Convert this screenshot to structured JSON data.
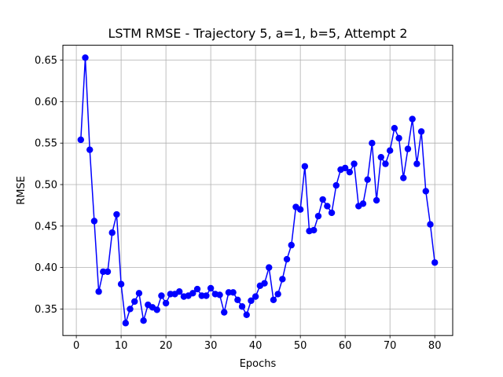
{
  "chart_data": {
    "type": "line",
    "title": "LSTM RMSE - Trajectory 5, a=1, b=5, Attempt 2",
    "xlabel": "Epochs",
    "ylabel": "RMSE",
    "xlim": [
      -3,
      84
    ],
    "ylim": [
      0.318,
      0.668
    ],
    "xticks": [
      0,
      10,
      20,
      30,
      40,
      50,
      60,
      70,
      80
    ],
    "yticks": [
      0.35,
      0.4,
      0.45,
      0.5,
      0.55,
      0.6,
      0.65
    ],
    "ytick_labels": [
      "0.35",
      "0.40",
      "0.45",
      "0.50",
      "0.55",
      "0.60",
      "0.65"
    ],
    "grid": true,
    "series": [
      {
        "color": "#0000ff",
        "marker": "circle",
        "x": [
          1,
          2,
          3,
          4,
          5,
          6,
          7,
          8,
          9,
          10,
          11,
          12,
          13,
          14,
          15,
          16,
          17,
          18,
          19,
          20,
          21,
          22,
          23,
          24,
          25,
          26,
          27,
          28,
          29,
          30,
          31,
          32,
          33,
          34,
          35,
          36,
          37,
          38,
          39,
          40,
          41,
          42,
          43,
          44,
          45,
          46,
          47,
          48,
          49,
          50,
          51,
          52,
          53,
          54,
          55,
          56,
          57,
          58,
          59,
          60,
          61,
          62,
          63,
          64,
          65,
          66,
          67,
          68,
          69,
          70,
          71,
          72,
          73,
          74,
          75,
          76,
          77,
          78,
          79,
          80
        ],
        "values": [
          0.554,
          0.653,
          0.542,
          0.456,
          0.371,
          0.395,
          0.395,
          0.442,
          0.464,
          0.38,
          0.333,
          0.35,
          0.359,
          0.369,
          0.336,
          0.355,
          0.352,
          0.349,
          0.366,
          0.357,
          0.368,
          0.368,
          0.371,
          0.365,
          0.366,
          0.369,
          0.374,
          0.366,
          0.366,
          0.375,
          0.368,
          0.367,
          0.346,
          0.37,
          0.37,
          0.361,
          0.353,
          0.343,
          0.36,
          0.365,
          0.378,
          0.381,
          0.4,
          0.361,
          0.368,
          0.386,
          0.41,
          0.427,
          0.473,
          0.47,
          0.522,
          0.444,
          0.445,
          0.462,
          0.482,
          0.474,
          0.466,
          0.499,
          0.518,
          0.52,
          0.515,
          0.525,
          0.474,
          0.477,
          0.506,
          0.55,
          0.481,
          0.533,
          0.525,
          0.541,
          0.568,
          0.556,
          0.508,
          0.543,
          0.579,
          0.525,
          0.564,
          0.492,
          0.452,
          0.406
        ]
      }
    ]
  }
}
